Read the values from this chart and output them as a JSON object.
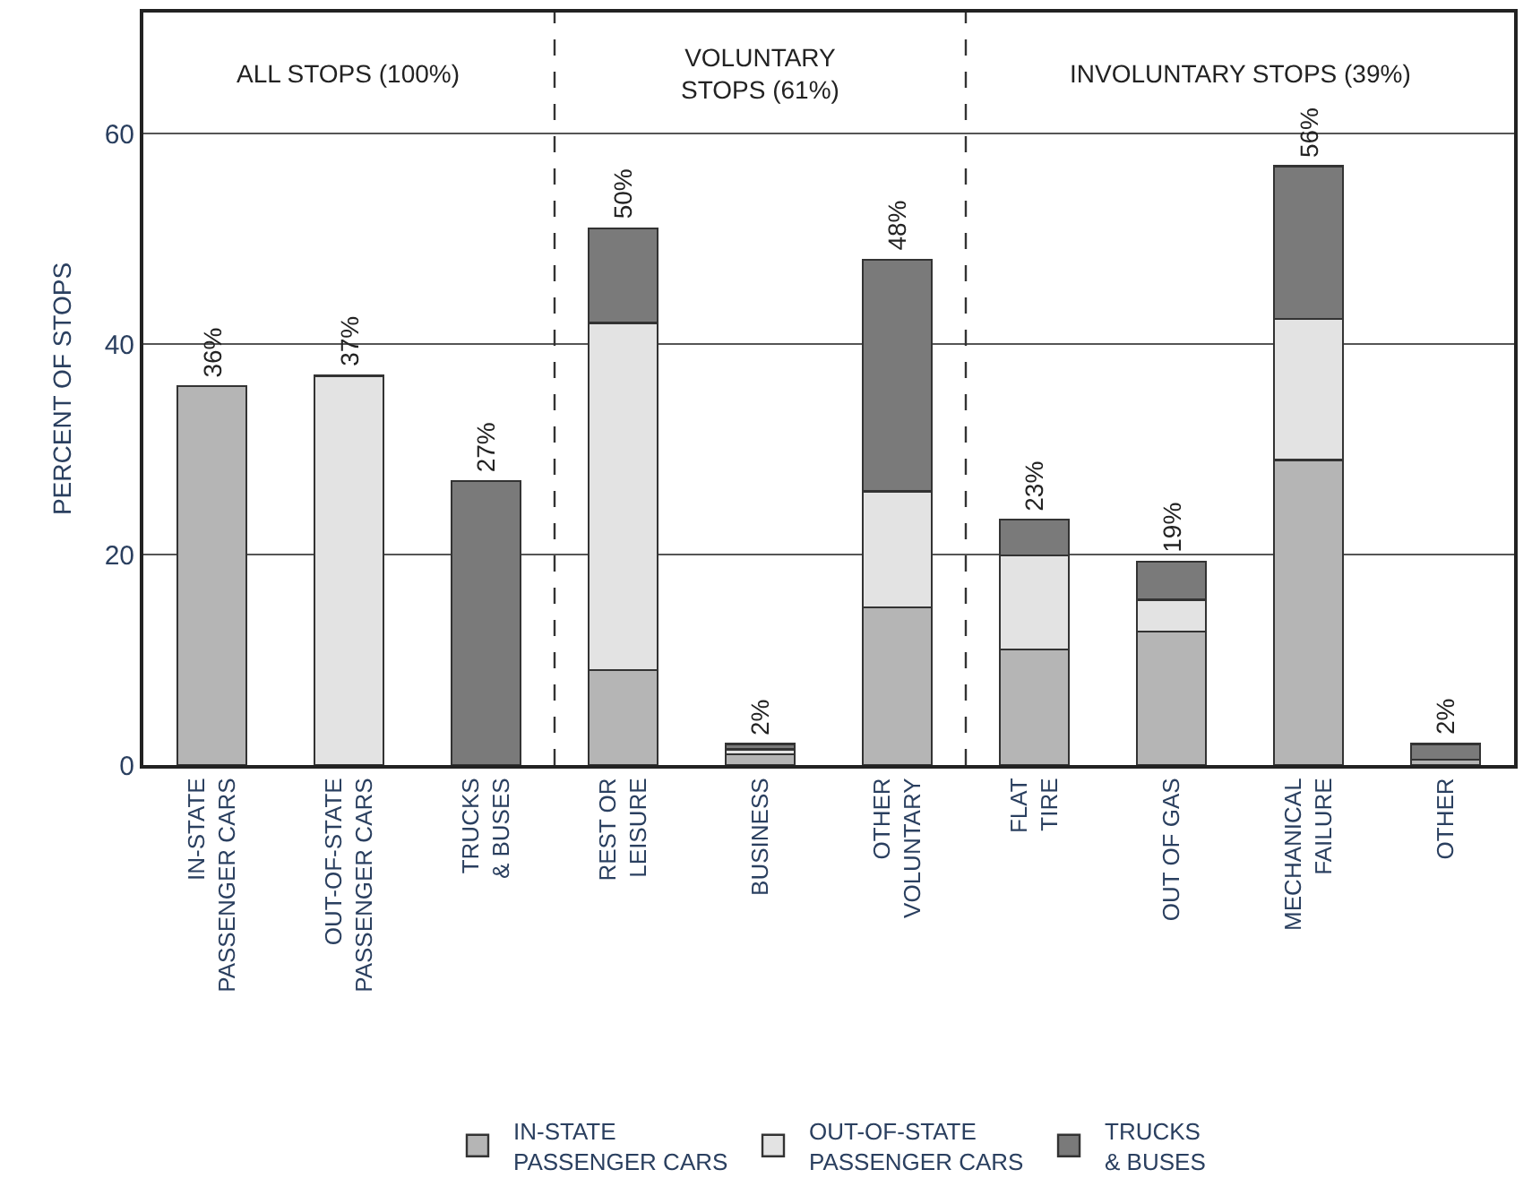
{
  "chart_data": {
    "type": "bar",
    "stacked": true,
    "ylabel": "PERCENT OF STOPS",
    "categories": [
      "IN-STATE\nPASSENGER CARS",
      "OUT-OF-STATE\nPASSENGER CARS",
      "TRUCKS\n& BUSES",
      "REST OR\nLEISURE",
      "BUSINESS",
      "OTHER\nVOLUNTARY",
      "FLAT\nTIRE",
      "OUT OF GAS",
      "MECHANICAL\nFAILURE",
      "OTHER"
    ],
    "series": [
      {
        "name": "IN-STATE\nPASSENGER CARS",
        "color": "#b5b5b5",
        "values": [
          36,
          null,
          null,
          9,
          1,
          15,
          11,
          12.7,
          29,
          0.5
        ]
      },
      {
        "name": "OUT-OF-STATE\nPASSENGER CARS",
        "color": "#e3e3e3",
        "values": [
          null,
          37,
          null,
          33,
          0.5,
          11,
          8.9,
          3,
          13.4,
          null
        ]
      },
      {
        "name": "TRUCKS\n& BUSES",
        "color": "#7a7a7a",
        "values": [
          null,
          null,
          27,
          9,
          0.5,
          22,
          3.4,
          3.6,
          14.5,
          1.5
        ]
      }
    ],
    "totals": [
      "36%",
      "37%",
      "27%",
      "50%",
      "2%",
      "48%",
      "23%",
      "19%",
      "56%",
      "2%"
    ],
    "ylim": [
      0,
      71.5
    ],
    "yticks": [
      0,
      20,
      40,
      60
    ],
    "grid": "y",
    "legend": "bottom",
    "annotations": [
      "ALL STOPS (100%)",
      "VOLUNTARY\nSTOPS (61%)",
      "INVOLUNTARY STOPS (39%)"
    ]
  }
}
